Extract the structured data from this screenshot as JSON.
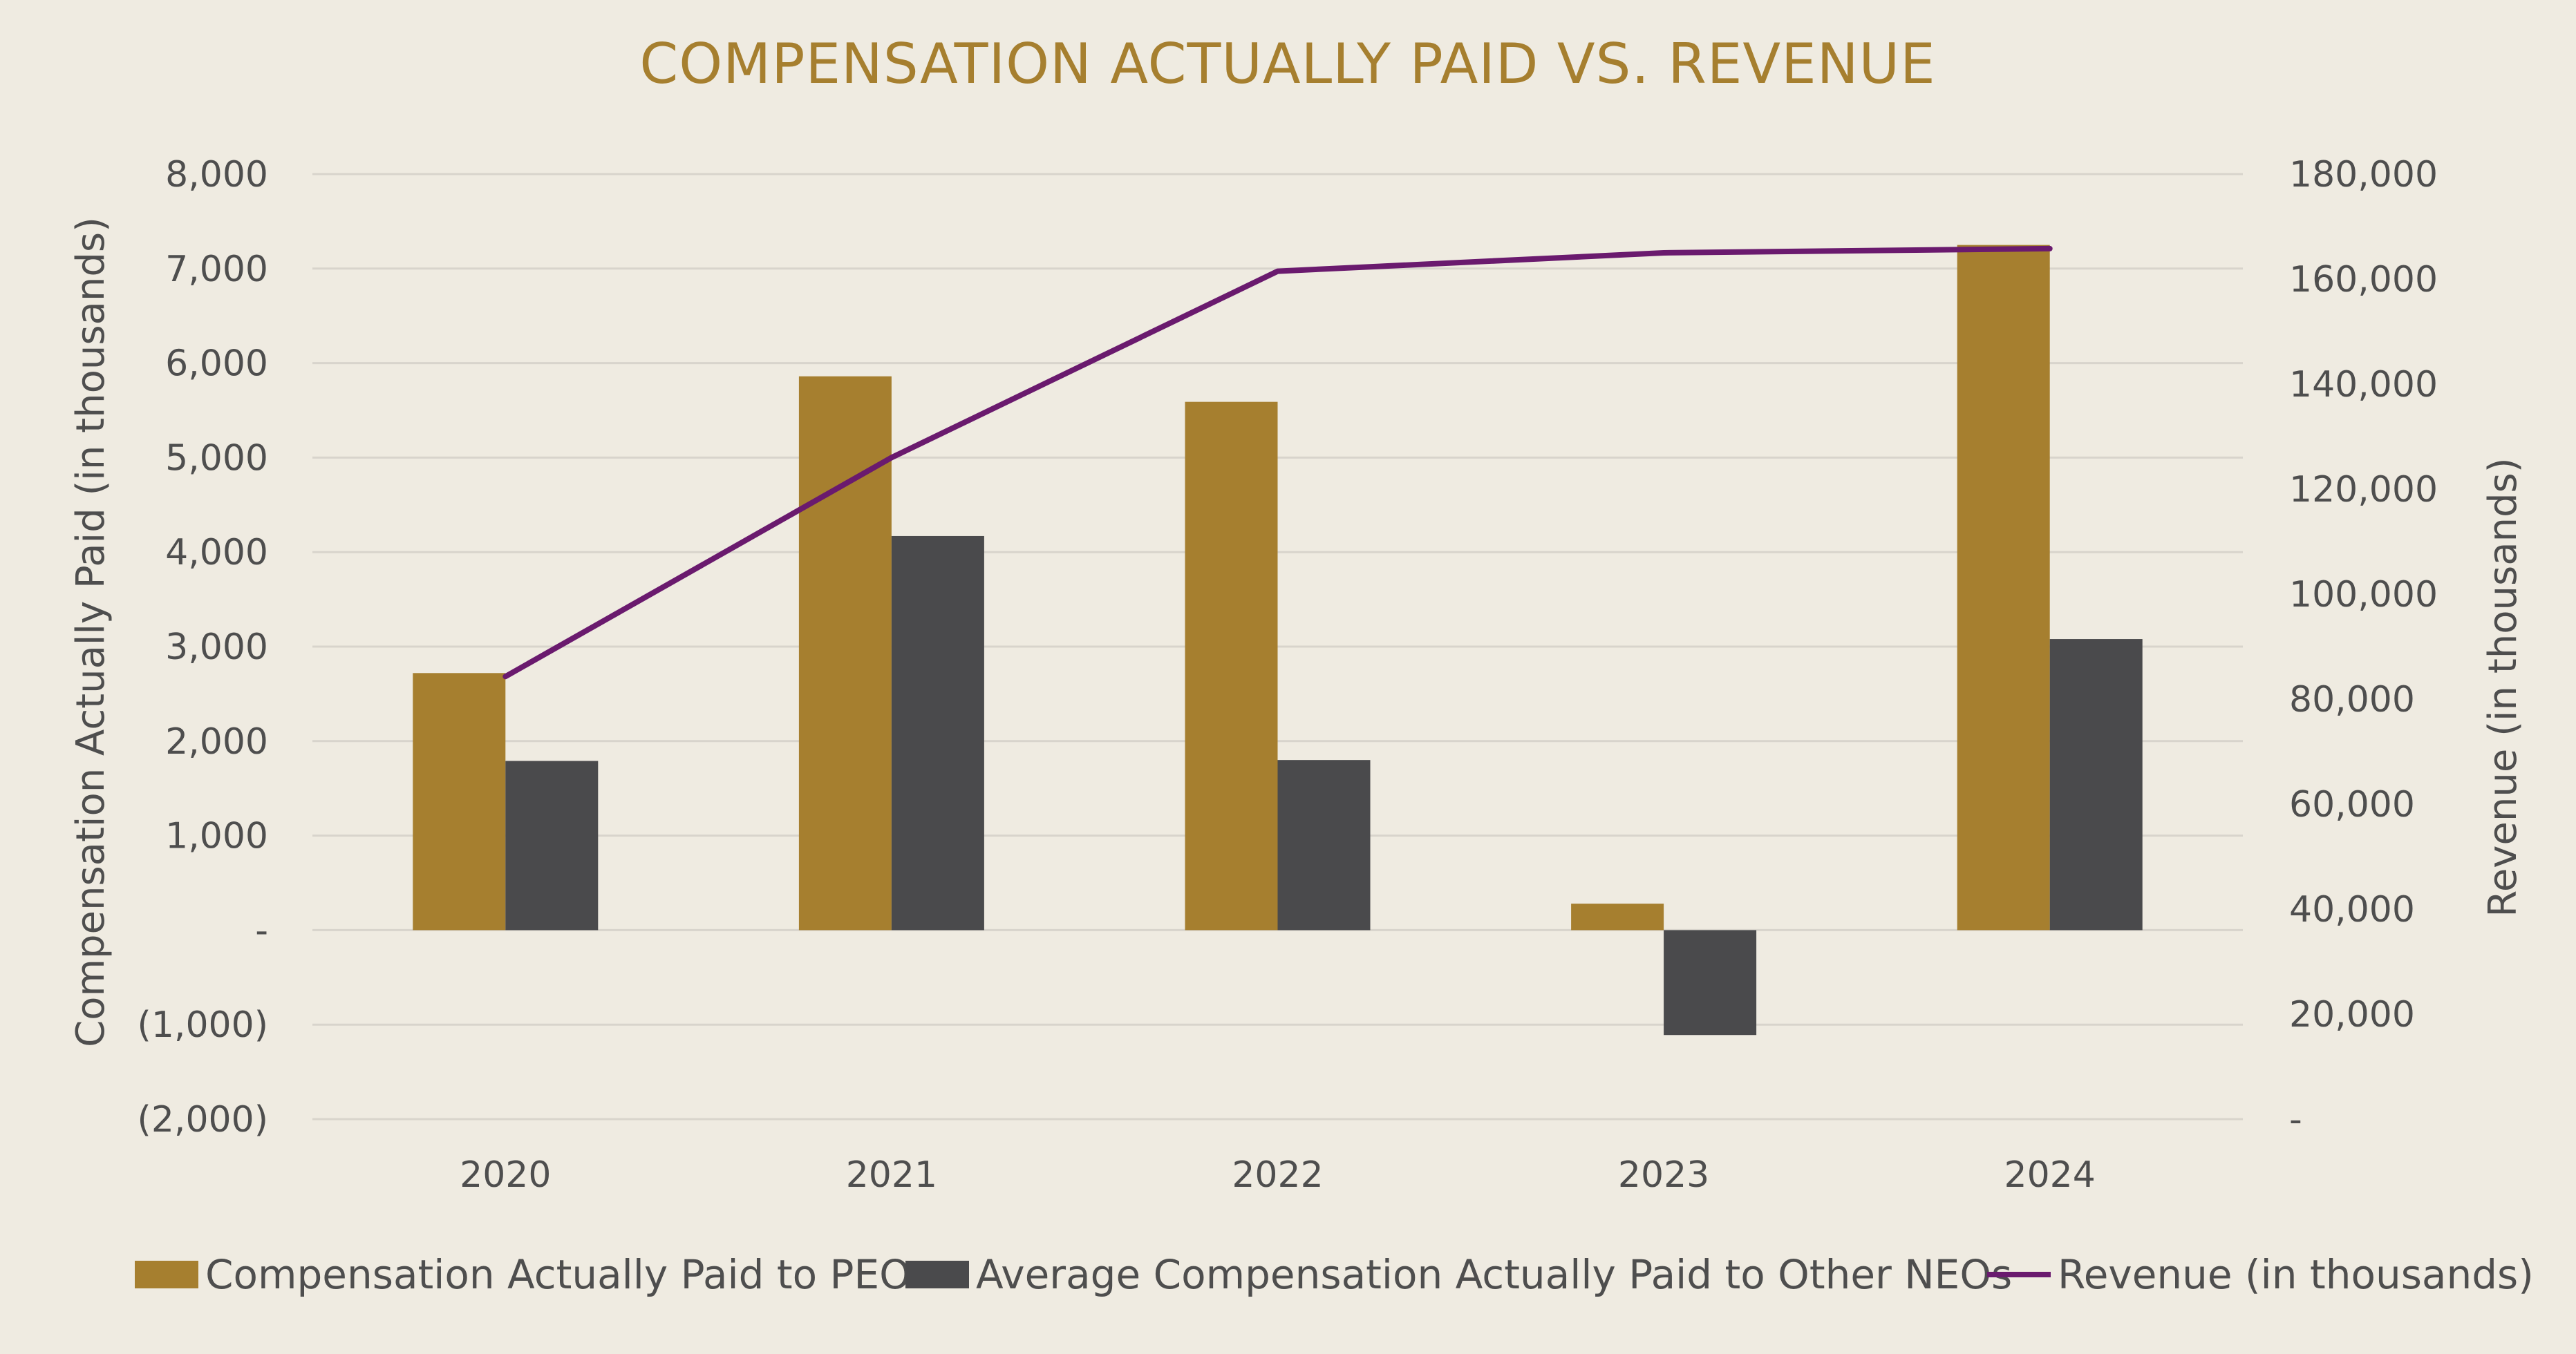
{
  "chart_data": {
    "type": "bar",
    "title": "COMPENSATION ACTUALLY PAID VS. REVENUE",
    "categories": [
      "2020",
      "2021",
      "2022",
      "2023",
      "2024"
    ],
    "series": [
      {
        "name": "Compensation Actually Paid to PEO",
        "type": "bar",
        "axis": "left",
        "color": "#a67f2f",
        "values": [
          2720,
          5860,
          5590,
          280,
          7250
        ]
      },
      {
        "name": "Average Compensation Actually Paid to Other NEOs",
        "type": "bar",
        "axis": "left",
        "color": "#4a4a4c",
        "values": [
          1790,
          4170,
          1800,
          -1110,
          3080
        ]
      },
      {
        "name": "Revenue (in thousands)",
        "type": "line",
        "axis": "right",
        "color": "#6a1a6e",
        "values": [
          84300,
          126000,
          161500,
          165000,
          165800
        ]
      }
    ],
    "ylabel": "Compensation Actually Paid (in thousands)",
    "y2label": "Revenue (in thousands)",
    "ylim": [
      -2000,
      8000
    ],
    "y2lim": [
      0,
      180000
    ],
    "y_ticks": [
      {
        "value": 8000,
        "label": "8,000"
      },
      {
        "value": 7000,
        "label": "7,000"
      },
      {
        "value": 6000,
        "label": "6,000"
      },
      {
        "value": 5000,
        "label": "5,000"
      },
      {
        "value": 4000,
        "label": "4,000"
      },
      {
        "value": 3000,
        "label": "3,000"
      },
      {
        "value": 2000,
        "label": "2,000"
      },
      {
        "value": 1000,
        "label": "1,000"
      },
      {
        "value": 0,
        "label": "-"
      },
      {
        "value": -1000,
        "label": "(1,000)"
      },
      {
        "value": -2000,
        "label": "(2,000)"
      }
    ],
    "y2_ticks": [
      {
        "value": 180000,
        "label": "180,000"
      },
      {
        "value": 160000,
        "label": "160,000"
      },
      {
        "value": 140000,
        "label": "140,000"
      },
      {
        "value": 120000,
        "label": "120,000"
      },
      {
        "value": 100000,
        "label": "100,000"
      },
      {
        "value": 80000,
        "label": "80,000"
      },
      {
        "value": 60000,
        "label": "60,000"
      },
      {
        "value": 40000,
        "label": "40,000"
      },
      {
        "value": 20000,
        "label": "20,000"
      },
      {
        "value": 0,
        "label": "-"
      }
    ],
    "grid": true,
    "legend_position": "bottom"
  }
}
